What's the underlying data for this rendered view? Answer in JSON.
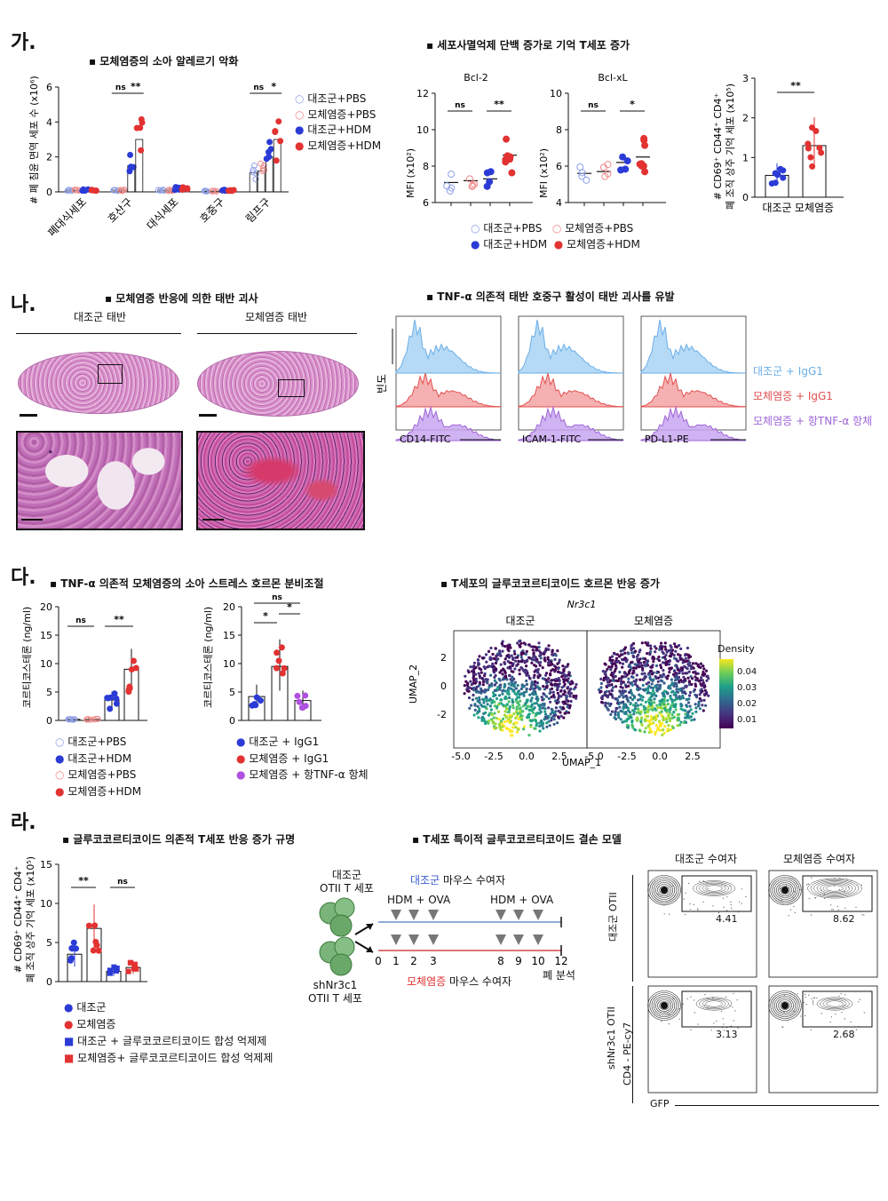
{
  "panels": {
    "ga": {
      "label": "가.",
      "title1": "▪ 모체염증의 소아 알레르기 악화",
      "title2": "▪ 세포사멸억제 단백 증가로 기억 T세포 증가",
      "ylabel1": "# 폐 침윤 면역 세포 수 (x10⁶)",
      "categories": [
        "폐대식세포",
        "호산구",
        "대식세포",
        "호중구",
        "림프구"
      ],
      "legend": [
        "대조군+PBS",
        "모체염증+PBS",
        "대조군+HDM",
        "모체염증+HDM"
      ],
      "bcl2_title": "Bcl-2",
      "bclxl_title": "Bcl-xL",
      "mfi_label": "MFI (x10²)",
      "legend2": [
        "대조군+PBS",
        "모체염증+PBS",
        "대조군+HDM",
        "모체염증+HDM"
      ],
      "mem_ylabel1": "# CD69⁺ CD44⁺ CD4⁺",
      "mem_ylabel2": "폐 조직 상주 기억 세포  (x10⁵)",
      "mem_categories": [
        "대조군",
        "모체염증"
      ]
    },
    "na": {
      "label": "나.",
      "title1": "▪ 모체염증 반응에 의한 태반 괴사",
      "title2": "▪ TNF-α 의존적 태반 호중구 활성이 태반 괴사를 유발",
      "placenta_ctrl": "대조군 태반",
      "placenta_mia": "모체염증 태반",
      "freq_label": "빈도",
      "markers": [
        "CD14-FITC",
        "ICAM-1-FITC",
        "PD-L1-PE"
      ],
      "legend": [
        "대조군 + IgG1",
        "모체염증 + IgG1",
        "모체염증 + 항TNF-α 항체"
      ]
    },
    "da": {
      "label": "다.",
      "title1": "▪ TNF-α 의존적 모체염증의 소아 스트레스 호르몬 분비조절",
      "title2": "▪ T세포의 글루코코르티코이드 호르몬 반응 증가",
      "cort_label": "코르티코스테론 (ng/ml)",
      "legend1": [
        "대조군+PBS",
        "대조군+HDM",
        "모체염증+PBS",
        "모체염증+HDM"
      ],
      "legend2": [
        "대조군 + IgG1",
        "모체염증 + IgG1",
        "모체염증 + 항TNF-α 항체"
      ],
      "umap_gene": "Nr3c1",
      "umap_ctrl": "대조군",
      "umap_mia": "모체염증",
      "umap_x": "UMAP_1",
      "umap_y": "UMAP_2",
      "density_title": "Density",
      "density_ticks": [
        "0.04",
        "0.03",
        "0.02",
        "0.01"
      ]
    },
    "ra": {
      "label": "라.",
      "title1": "▪ 글루코코르티코이드 의존적 T세포 반응 증가 규명",
      "title2": "▪ T세포 특이적 글루코코르티코이드 결손 모델",
      "ylabel1": "# CD69⁺ CD44⁺ CD4⁺",
      "ylabel2": "폐 조직 상주 기억 세포  (x10⁵)",
      "legend": [
        "대조군",
        "모체염증",
        "대조군 + 글루코코르티코이드 합성 억제제",
        "모체염증+ 글루코코르티코이드 합성 억제제"
      ],
      "otii_ctrl_1": "대조군",
      "otii_ctrl_2": "OTII T 세포",
      "otii_sh_1": "shNr3c1",
      "otii_sh_2": "OTII T 세포",
      "ctrl_recipient_a": "대조군",
      "ctrl_recipient_b": " 마우스 수여자",
      "mia_recipient_a": "모체염증",
      "mia_recipient_b": " 마우스 수여자",
      "hdm_ova": "HDM + OVA",
      "timeline": [
        "0",
        "1",
        "2",
        "3",
        "8",
        "9",
        "10",
        "12"
      ],
      "analysis": "폐 분석",
      "flow_col1": "대조군 수여자",
      "flow_col2": "모체염증 수여자",
      "flow_row1": "대조군 OTII",
      "flow_row2": "shNr3c1 OTII",
      "flow_y": "CD4 - PE-cy7",
      "flow_x": "GFP",
      "flow_values": [
        "4.41",
        "8.62",
        "3.13",
        "2.68"
      ]
    }
  },
  "colors": {
    "blue": "#2b3bd6",
    "red": "#e23232",
    "lightblue": "#8fc4ee",
    "salmon": "#f08a8a",
    "purple": "#b07ce0",
    "ctrl_text": "#3a5bd0",
    "mia_text": "#e03030"
  },
  "chart_data": [
    {
      "type": "bar",
      "title": "모체염증의 소아 알레르기 악화",
      "ylabel": "# 폐 침윤 면역 세포 수 (x10⁶)",
      "categories": [
        "폐대식세포",
        "호산구",
        "대식세포",
        "호중구",
        "림프구"
      ],
      "ylim": [
        0,
        6
      ],
      "series": [
        {
          "name": "대조군+PBS",
          "values": [
            0.1,
            0.1,
            0.1,
            0.05,
            1.1
          ]
        },
        {
          "name": "모체염증+PBS",
          "values": [
            0.1,
            0.1,
            0.1,
            0.05,
            1.2
          ]
        },
        {
          "name": "대조군+HDM",
          "values": [
            0.1,
            1.5,
            0.2,
            0.1,
            2.0
          ]
        },
        {
          "name": "모체염증+HDM",
          "values": [
            0.1,
            3.0,
            0.2,
            0.1,
            3.0
          ]
        }
      ],
      "annotations": [
        "ns",
        "**",
        "ns",
        "*"
      ]
    },
    {
      "type": "scatter",
      "title": "Bcl-2",
      "ylabel": "MFI (x10²)",
      "ylim": [
        6,
        12
      ],
      "series": [
        {
          "name": "대조군+PBS",
          "values": [
            7.1
          ]
        },
        {
          "name": "모체염증+PBS",
          "values": [
            7.2
          ]
        },
        {
          "name": "대조군+HDM",
          "values": [
            7.3
          ]
        },
        {
          "name": "모체염증+HDM",
          "values": [
            8.6
          ]
        }
      ],
      "annotations": [
        "ns",
        "**"
      ]
    },
    {
      "type": "scatter",
      "title": "Bcl-xL",
      "ylabel": "MFI (x10²)",
      "ylim": [
        4,
        10
      ],
      "series": [
        {
          "name": "대조군+PBS",
          "values": [
            5.6
          ]
        },
        {
          "name": "모체염증+PBS",
          "values": [
            5.7
          ]
        },
        {
          "name": "대조군+HDM",
          "values": [
            6.2
          ]
        },
        {
          "name": "모체염증+HDM",
          "values": [
            6.5
          ]
        }
      ],
      "annotations": [
        "ns",
        "*"
      ]
    },
    {
      "type": "bar",
      "ylim": [
        0,
        3
      ],
      "categories": [
        "대조군",
        "모체염증"
      ],
      "values": [
        0.55,
        1.3
      ],
      "annotations": [
        "**"
      ]
    },
    {
      "type": "bar",
      "ylabel": "코르티코스테론 (ng/ml)",
      "ylim": [
        0,
        20
      ],
      "categories": [
        "대조군+PBS",
        "모체염증+PBS",
        "대조군+HDM",
        "모체염증+HDM"
      ],
      "values": [
        0.2,
        0.2,
        3.6,
        9.0
      ],
      "annotations": [
        "ns",
        "**"
      ]
    },
    {
      "type": "bar",
      "ylabel": "코르티코스테론 (ng/ml)",
      "ylim": [
        0,
        20
      ],
      "categories": [
        "대조군 + IgG1",
        "모체염증 + IgG1",
        "모체염증 + 항TNF-α 항체"
      ],
      "values": [
        4.2,
        9.5,
        3.5
      ],
      "annotations": [
        "*",
        "*",
        "ns"
      ]
    },
    {
      "type": "bar",
      "ylabel": "# CD69⁺ CD44⁺ CD4⁺ 폐 조직 상주 기억 세포  (x10⁵)",
      "ylim": [
        0,
        15
      ],
      "categories": [
        "대조군",
        "모체염증",
        "대조군 + 글루코코르티코이드 합성 억제제",
        "모체염증+ 글루코코르티코이드 합성 억제제"
      ],
      "values": [
        3.5,
        6.8,
        1.3,
        1.8
      ],
      "annotations": [
        "**",
        "ns"
      ]
    }
  ]
}
